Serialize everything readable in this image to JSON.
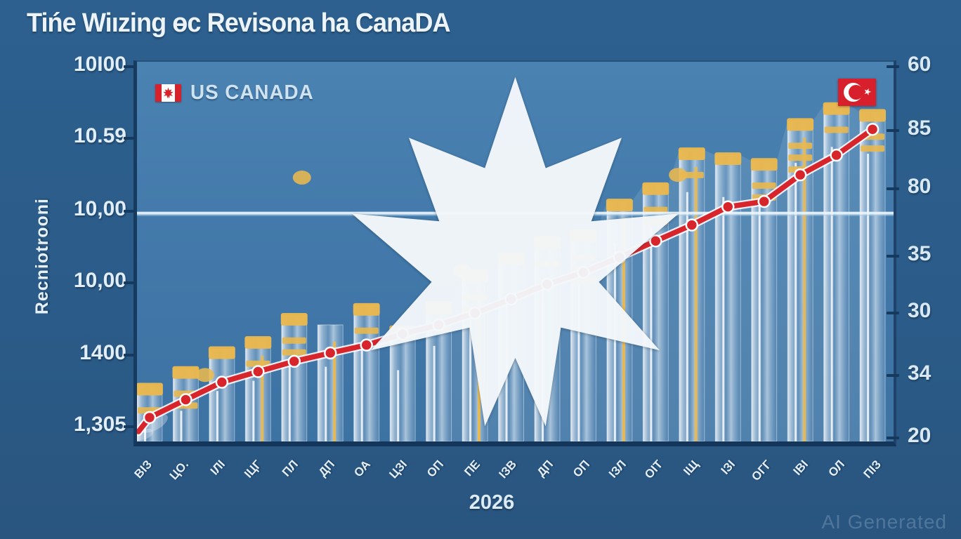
{
  "page": {
    "title": "Tińe Wiızing ɵc Revisona ha CanaDA",
    "footer_year": "2026",
    "watermark": "AI Generated"
  },
  "legend": {
    "label": "US CANADA",
    "flag": "canada-flag"
  },
  "corner_icons": {
    "left": "white-maple-leaf-icon",
    "right": "turkey-flag-icon"
  },
  "left_axis": {
    "title": "Recniotrooni",
    "ticks": [
      {
        "label": "10I00",
        "pos": 0.013
      },
      {
        "label": "10.59",
        "pos": 0.198
      },
      {
        "label": "10,00",
        "pos": 0.388
      },
      {
        "label": "10,00",
        "pos": 0.572
      },
      {
        "label": "1400",
        "pos": 0.76
      },
      {
        "label": "1,305",
        "pos": 0.945
      }
    ]
  },
  "right_axis": {
    "ticks": [
      {
        "label": "60",
        "pos": 0.013
      },
      {
        "label": "85",
        "pos": 0.178
      },
      {
        "label": "80",
        "pos": 0.329
      },
      {
        "label": "35",
        "pos": 0.504
      },
      {
        "label": "30",
        "pos": 0.651
      },
      {
        "label": "34",
        "pos": 0.812
      },
      {
        "label": "20",
        "pos": 0.974
      }
    ]
  },
  "colors": {
    "page_bg": "#2B5C8A",
    "plot_bg": "#4078A9",
    "bar_gold": "#E9B84E",
    "line_red": "#D8252B",
    "reference_line": "#EAF4FC",
    "axis_dark": "#16395E",
    "canada_red": "#D7222C",
    "turkey_red": "#D7202C"
  },
  "chart_data": {
    "type": "bar",
    "title": "Tińe Wiızing ɵc Revisona ha CanaDA",
    "xlabel": "2026",
    "ylabel": "Recniotrooni",
    "legend_position": "top-left",
    "grid": false,
    "note": "AI-generated image; axis tick text is garbled and non-numeric, so series values are recorded as percent of plot height (0-100).",
    "categories": [
      "ВІЗ",
      "ЦО.",
      "ІЛІ",
      "ІЦГ",
      "ПЛ",
      "ДП",
      "ОА",
      "ЦЗІ",
      "ОП",
      "ПЕ",
      "ІЗВ",
      "ДП",
      "ОП",
      "ІЗЛ",
      "ОІТ",
      "ІЩ",
      "ІЗІ",
      "ОГГ",
      "ІВІ",
      "ОЛ",
      "ПІЗ"
    ],
    "series": [
      {
        "name": "US CANADA (bars)",
        "type": "bar",
        "unit": "percent_of_plot_height",
        "values": [
          14.7,
          19.1,
          24.3,
          27.0,
          33.1,
          30.7,
          35.7,
          29.8,
          36.2,
          44.5,
          49.1,
          53.3,
          55.1,
          63.2,
          67.5,
          76.7,
          75.4,
          73.9,
          84.4,
          88.6,
          86.8
        ]
      },
      {
        "name": "US CANADA (line)",
        "type": "line",
        "unit": "percent_of_plot_height",
        "values": [
          6.3,
          11.0,
          15.6,
          18.4,
          21.1,
          23.3,
          25.4,
          28.3,
          30.7,
          33.8,
          37.5,
          41.4,
          44.5,
          48.5,
          52.8,
          57.0,
          61.8,
          63.2,
          70.2,
          75.4,
          82.2
        ]
      }
    ],
    "gold_segments": [
      2,
      3,
      1,
      2,
      3,
      0,
      2,
      1,
      2,
      3,
      1,
      2,
      4,
      1,
      3,
      2,
      1,
      3,
      4,
      2,
      3
    ],
    "gold_vline": [
      false,
      false,
      false,
      true,
      false,
      true,
      false,
      false,
      false,
      true,
      false,
      false,
      false,
      true,
      false,
      true,
      false,
      false,
      true,
      false,
      false
    ],
    "reference_line_pct": 60.5,
    "floating_dots": [
      {
        "x": 0.09,
        "y": 0.825
      },
      {
        "x": 0.218,
        "y": 0.305
      },
      {
        "x": 0.43,
        "y": 0.551
      },
      {
        "x": 0.715,
        "y": 0.298
      }
    ],
    "left_ticks": [
      "10I00",
      "10.59",
      "10,00",
      "10,00",
      "1400",
      "1,305"
    ],
    "right_ticks": [
      "60",
      "85",
      "80",
      "35",
      "30",
      "34",
      "20"
    ]
  }
}
